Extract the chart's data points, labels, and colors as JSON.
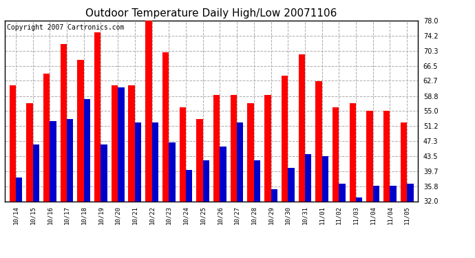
{
  "title": "Outdoor Temperature Daily High/Low 20071106",
  "copyright": "Copyright 2007 Cartronics.com",
  "dates": [
    "10/14",
    "10/15",
    "10/16",
    "10/17",
    "10/18",
    "10/19",
    "10/20",
    "10/21",
    "10/22",
    "10/23",
    "10/24",
    "10/25",
    "10/26",
    "10/27",
    "10/28",
    "10/29",
    "10/30",
    "10/31",
    "11/01",
    "11/02",
    "11/03",
    "11/04",
    "11/04",
    "11/05"
  ],
  "highs": [
    61.5,
    57.0,
    64.5,
    72.0,
    68.0,
    75.0,
    61.5,
    61.5,
    78.0,
    70.0,
    56.0,
    53.0,
    59.0,
    59.0,
    57.0,
    59.0,
    64.0,
    69.5,
    62.5,
    56.0,
    57.0,
    55.0,
    55.0,
    52.0
  ],
  "lows": [
    38.0,
    46.5,
    52.5,
    53.0,
    58.0,
    46.5,
    61.0,
    52.0,
    52.0,
    47.0,
    40.0,
    42.5,
    46.0,
    52.0,
    42.5,
    35.0,
    40.5,
    44.0,
    43.5,
    36.5,
    33.0,
    36.0,
    36.0,
    36.5
  ],
  "high_color": "#ff0000",
  "low_color": "#0000cc",
  "bg_color": "#ffffff",
  "grid_color": "#aaaaaa",
  "ymin": 32.0,
  "ymax": 78.0,
  "yticks": [
    32.0,
    35.8,
    39.7,
    43.5,
    47.3,
    51.2,
    55.0,
    58.8,
    62.7,
    66.5,
    70.3,
    74.2,
    78.0
  ],
  "title_fontsize": 11,
  "copyright_fontsize": 7,
  "bar_width": 0.38
}
